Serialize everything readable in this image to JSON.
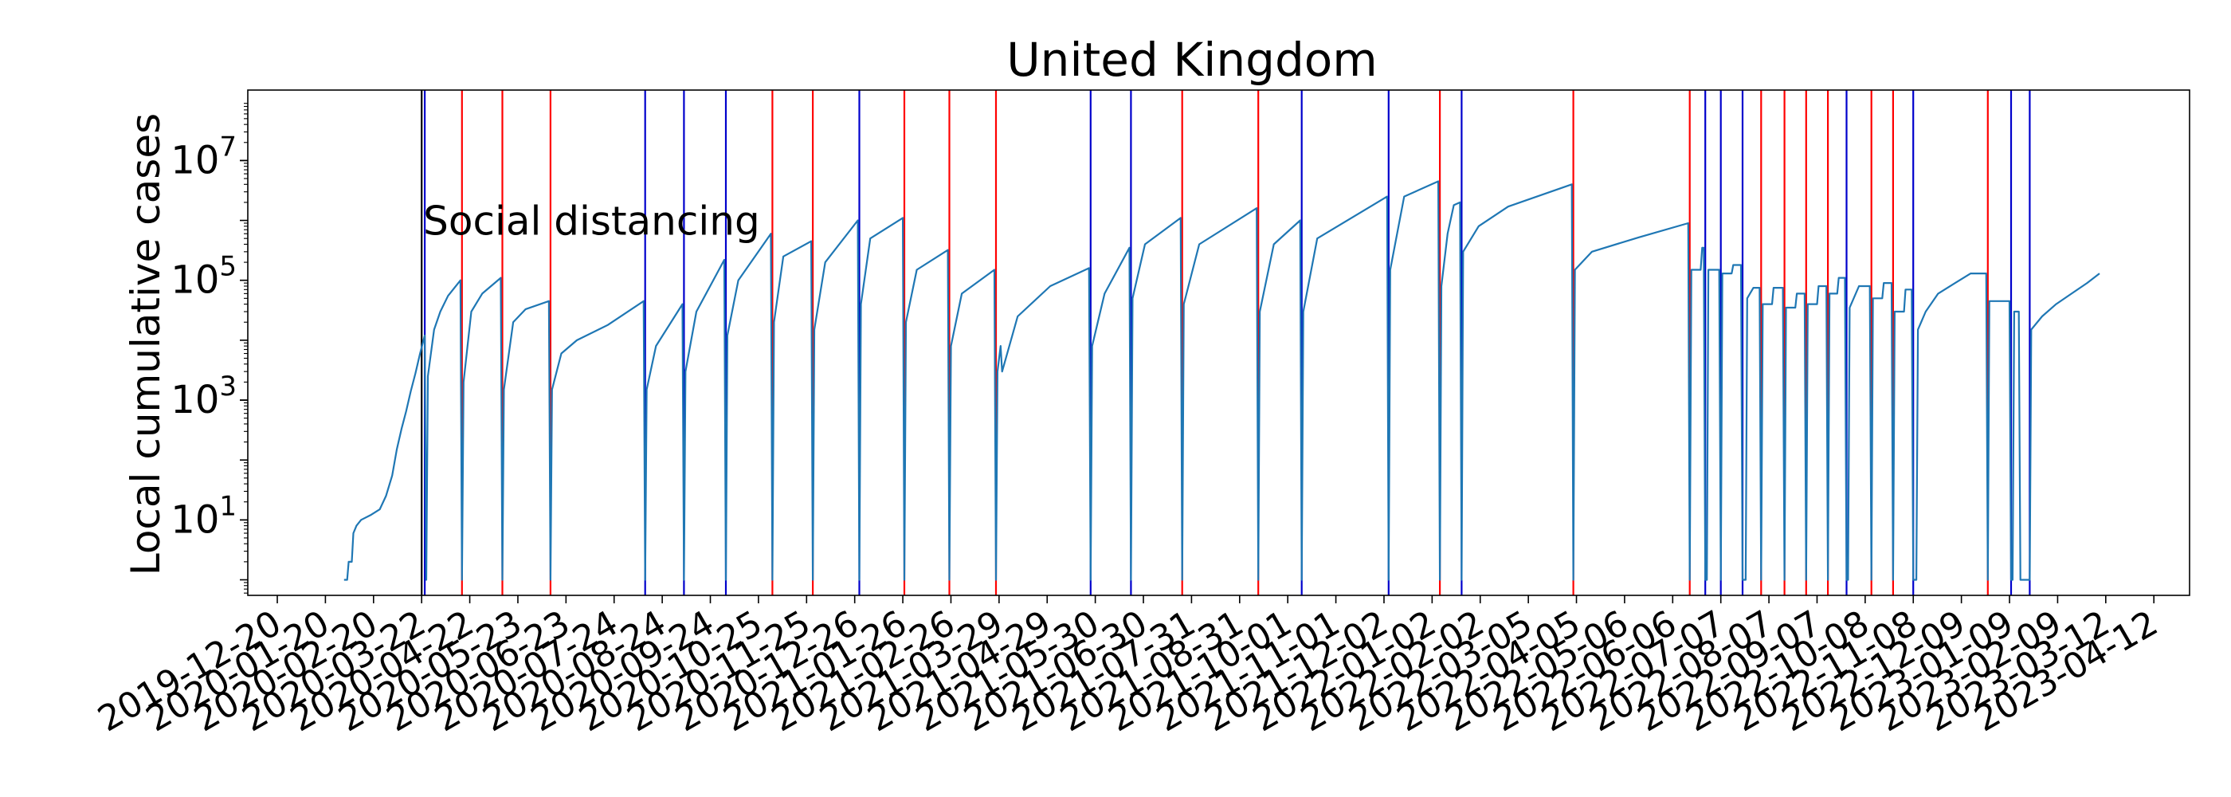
{
  "chart_data": {
    "type": "line",
    "title": "United Kingdom",
    "ylabel": "Local cumulative cases",
    "xlabel": "",
    "y_scale": "log",
    "ylim": [
      0.55,
      150000000.0
    ],
    "xlim": [
      "2019-12-01",
      "2023-05-05"
    ],
    "grid": false,
    "legend": "none",
    "y_ticks": [
      {
        "value": 10,
        "base": "10",
        "exp": "1"
      },
      {
        "value": 1000,
        "base": "10",
        "exp": "3"
      },
      {
        "value": 100000,
        "base": "10",
        "exp": "5"
      },
      {
        "value": 10000000,
        "base": "10",
        "exp": "7"
      }
    ],
    "x_tick_labels": [
      "2019-12-20",
      "2020-01-20",
      "2020-02-20",
      "2020-03-22",
      "2020-04-22",
      "2020-05-23",
      "2020-06-23",
      "2020-07-24",
      "2020-08-24",
      "2020-09-24",
      "2020-10-25",
      "2020-11-25",
      "2020-12-26",
      "2021-01-26",
      "2021-02-26",
      "2021-03-29",
      "2021-04-29",
      "2021-05-30",
      "2021-06-30",
      "2021-07-31",
      "2021-08-31",
      "2021-10-01",
      "2021-11-01",
      "2021-12-02",
      "2022-01-02",
      "2022-02-02",
      "2022-03-05",
      "2022-04-05",
      "2022-05-06",
      "2022-06-06",
      "2022-07-07",
      "2022-08-07",
      "2022-09-07",
      "2022-10-08",
      "2022-11-08",
      "2022-12-09",
      "2023-01-09",
      "2023-02-09",
      "2023-03-12",
      "2023-04-12"
    ],
    "annotations": [
      {
        "text": "Social distancing",
        "x": "2020-03-23",
        "y": 1000000
      }
    ],
    "event_line_color_red": "#ff0000",
    "event_line_color_blue": "#0000cc",
    "event_line_color_black": "#000000",
    "series_color": "#1f77b4",
    "event_lines": [
      {
        "date": "2020-03-22",
        "color": "black"
      },
      {
        "date": "2020-03-24",
        "color": "blue"
      },
      {
        "date": "2020-04-17",
        "color": "red"
      },
      {
        "date": "2020-05-13",
        "color": "red"
      },
      {
        "date": "2020-06-13",
        "color": "red"
      },
      {
        "date": "2020-08-13",
        "color": "blue"
      },
      {
        "date": "2020-09-07",
        "color": "blue"
      },
      {
        "date": "2020-10-04",
        "color": "blue"
      },
      {
        "date": "2020-11-03",
        "color": "red"
      },
      {
        "date": "2020-11-29",
        "color": "red"
      },
      {
        "date": "2020-12-29",
        "color": "blue"
      },
      {
        "date": "2021-01-27",
        "color": "red"
      },
      {
        "date": "2021-02-25",
        "color": "red"
      },
      {
        "date": "2021-03-27",
        "color": "red"
      },
      {
        "date": "2021-05-27",
        "color": "blue"
      },
      {
        "date": "2021-06-22",
        "color": "blue"
      },
      {
        "date": "2021-07-25",
        "color": "red"
      },
      {
        "date": "2021-09-12",
        "color": "red"
      },
      {
        "date": "2021-10-10",
        "color": "blue"
      },
      {
        "date": "2021-12-05",
        "color": "blue"
      },
      {
        "date": "2022-01-07",
        "color": "red"
      },
      {
        "date": "2022-01-21",
        "color": "blue"
      },
      {
        "date": "2022-04-03",
        "color": "red"
      },
      {
        "date": "2022-06-17",
        "color": "red"
      },
      {
        "date": "2022-06-27",
        "color": "blue"
      },
      {
        "date": "2022-07-07",
        "color": "blue"
      },
      {
        "date": "2022-07-21",
        "color": "blue"
      },
      {
        "date": "2022-08-02",
        "color": "red"
      },
      {
        "date": "2022-08-17",
        "color": "red"
      },
      {
        "date": "2022-08-31",
        "color": "red"
      },
      {
        "date": "2022-09-14",
        "color": "red"
      },
      {
        "date": "2022-09-26",
        "color": "blue"
      },
      {
        "date": "2022-10-12",
        "color": "red"
      },
      {
        "date": "2022-10-26",
        "color": "red"
      },
      {
        "date": "2022-11-08",
        "color": "blue"
      },
      {
        "date": "2022-12-26",
        "color": "red"
      },
      {
        "date": "2023-01-10",
        "color": "blue"
      },
      {
        "date": "2023-01-22",
        "color": "blue"
      }
    ],
    "series": [
      {
        "points": [
          [
            "2020-02-01",
            1
          ],
          [
            "2020-02-03",
            1
          ],
          [
            "2020-02-04",
            2
          ],
          [
            "2020-02-06",
            2
          ],
          [
            "2020-02-07",
            6
          ],
          [
            "2020-02-09",
            8
          ],
          [
            "2020-02-12",
            10
          ],
          [
            "2020-02-18",
            12
          ],
          [
            "2020-02-24",
            15
          ],
          [
            "2020-02-28",
            25
          ],
          [
            "2020-03-03",
            55
          ],
          [
            "2020-03-06",
            150
          ],
          [
            "2020-03-09",
            330
          ],
          [
            "2020-03-12",
            650
          ],
          [
            "2020-03-15",
            1400
          ],
          [
            "2020-03-18",
            2800
          ],
          [
            "2020-03-21",
            6000
          ],
          [
            "2020-03-24",
            12000
          ],
          [
            "2020-03-25",
            1
          ],
          [
            "2020-03-26",
            2500
          ],
          [
            "2020-03-30",
            15000
          ],
          [
            "2020-04-03",
            30000
          ],
          [
            "2020-04-08",
            55000
          ],
          [
            "2020-04-16",
            100000
          ],
          [
            "2020-04-17",
            1
          ],
          [
            "2020-04-18",
            2000
          ],
          [
            "2020-04-23",
            30000
          ],
          [
            "2020-04-30",
            60000
          ],
          [
            "2020-05-12",
            110000
          ],
          [
            "2020-05-13",
            1
          ],
          [
            "2020-05-14",
            1500
          ],
          [
            "2020-05-20",
            20000
          ],
          [
            "2020-05-28",
            33000
          ],
          [
            "2020-06-12",
            45000
          ],
          [
            "2020-06-13",
            1
          ],
          [
            "2020-06-14",
            1500
          ],
          [
            "2020-06-20",
            6000
          ],
          [
            "2020-06-30",
            10000
          ],
          [
            "2020-07-20",
            18000
          ],
          [
            "2020-08-12",
            45000
          ],
          [
            "2020-08-13",
            1
          ],
          [
            "2020-08-14",
            1500
          ],
          [
            "2020-08-20",
            8000
          ],
          [
            "2020-09-06",
            40000
          ],
          [
            "2020-09-07",
            1
          ],
          [
            "2020-09-08",
            3000
          ],
          [
            "2020-09-15",
            30000
          ],
          [
            "2020-10-03",
            220000
          ],
          [
            "2020-10-04",
            1
          ],
          [
            "2020-10-05",
            12000
          ],
          [
            "2020-10-12",
            100000
          ],
          [
            "2020-11-02",
            600000
          ],
          [
            "2020-11-03",
            1
          ],
          [
            "2020-11-04",
            20000
          ],
          [
            "2020-11-10",
            250000
          ],
          [
            "2020-11-28",
            450000
          ],
          [
            "2020-11-29",
            1
          ],
          [
            "2020-11-30",
            15000
          ],
          [
            "2020-12-07",
            200000
          ],
          [
            "2020-12-28",
            1000000
          ],
          [
            "2020-12-29",
            1
          ],
          [
            "2020-12-30",
            40000
          ],
          [
            "2021-01-05",
            500000
          ],
          [
            "2021-01-26",
            1100000
          ],
          [
            "2021-01-27",
            1
          ],
          [
            "2021-01-28",
            20000
          ],
          [
            "2021-02-04",
            150000
          ],
          [
            "2021-02-24",
            320000
          ],
          [
            "2021-02-25",
            1
          ],
          [
            "2021-02-26",
            8000
          ],
          [
            "2021-03-05",
            60000
          ],
          [
            "2021-03-26",
            150000
          ],
          [
            "2021-03-27",
            1
          ],
          [
            "2021-03-28",
            3000
          ],
          [
            "2021-03-30",
            8000
          ],
          [
            "2021-03-31",
            3000
          ],
          [
            "2021-04-10",
            25000
          ],
          [
            "2021-05-01",
            80000
          ],
          [
            "2021-05-26",
            160000
          ],
          [
            "2021-05-27",
            1
          ],
          [
            "2021-05-28",
            8000
          ],
          [
            "2021-06-05",
            60000
          ],
          [
            "2021-06-21",
            350000
          ],
          [
            "2021-06-22",
            1
          ],
          [
            "2021-06-23",
            50000
          ],
          [
            "2021-07-01",
            400000
          ],
          [
            "2021-07-24",
            1100000
          ],
          [
            "2021-07-25",
            1
          ],
          [
            "2021-07-26",
            40000
          ],
          [
            "2021-08-05",
            400000
          ],
          [
            "2021-09-11",
            1600000
          ],
          [
            "2021-09-12",
            1
          ],
          [
            "2021-09-13",
            30000
          ],
          [
            "2021-09-22",
            400000
          ],
          [
            "2021-10-09",
            1000000
          ],
          [
            "2021-10-10",
            1
          ],
          [
            "2021-10-11",
            30000
          ],
          [
            "2021-10-20",
            500000
          ],
          [
            "2021-12-04",
            2500000
          ],
          [
            "2021-12-05",
            1
          ],
          [
            "2021-12-06",
            150000
          ],
          [
            "2021-12-15",
            2500000
          ],
          [
            "2022-01-06",
            4500000
          ],
          [
            "2022-01-07",
            1
          ],
          [
            "2022-01-08",
            80000
          ],
          [
            "2022-01-12",
            600000
          ],
          [
            "2022-01-16",
            1800000
          ],
          [
            "2022-01-20",
            2000000
          ],
          [
            "2022-01-21",
            1
          ],
          [
            "2022-01-22",
            300000
          ],
          [
            "2022-02-01",
            800000
          ],
          [
            "2022-02-20",
            1700000
          ],
          [
            "2022-04-02",
            4000000
          ],
          [
            "2022-04-03",
            1
          ],
          [
            "2022-04-04",
            150000
          ],
          [
            "2022-04-15",
            300000
          ],
          [
            "2022-05-15",
            520000
          ],
          [
            "2022-06-16",
            900000
          ],
          [
            "2022-06-17",
            1
          ],
          [
            "2022-06-18",
            150000
          ],
          [
            "2022-06-24",
            150000
          ],
          [
            "2022-06-25",
            350000
          ],
          [
            "2022-06-26",
            350000
          ],
          [
            "2022-06-27",
            1
          ],
          [
            "2022-06-28",
            1
          ],
          [
            "2022-06-29",
            150000
          ],
          [
            "2022-07-06",
            150000
          ],
          [
            "2022-07-07",
            1
          ],
          [
            "2022-07-08",
            130000
          ],
          [
            "2022-07-14",
            130000
          ],
          [
            "2022-07-15",
            180000
          ],
          [
            "2022-07-20",
            180000
          ],
          [
            "2022-07-21",
            1
          ],
          [
            "2022-07-23",
            1
          ],
          [
            "2022-07-24",
            50000
          ],
          [
            "2022-07-28",
            75000
          ],
          [
            "2022-08-01",
            75000
          ],
          [
            "2022-08-02",
            1
          ],
          [
            "2022-08-03",
            40000
          ],
          [
            "2022-08-09",
            40000
          ],
          [
            "2022-08-10",
            75000
          ],
          [
            "2022-08-16",
            75000
          ],
          [
            "2022-08-17",
            1
          ],
          [
            "2022-08-18",
            35000
          ],
          [
            "2022-08-24",
            35000
          ],
          [
            "2022-08-25",
            60000
          ],
          [
            "2022-08-30",
            60000
          ],
          [
            "2022-08-31",
            1
          ],
          [
            "2022-09-01",
            40000
          ],
          [
            "2022-09-07",
            40000
          ],
          [
            "2022-09-08",
            80000
          ],
          [
            "2022-09-13",
            80000
          ],
          [
            "2022-09-14",
            1
          ],
          [
            "2022-09-15",
            60000
          ],
          [
            "2022-09-20",
            60000
          ],
          [
            "2022-09-21",
            110000
          ],
          [
            "2022-09-25",
            110000
          ],
          [
            "2022-09-26",
            1
          ],
          [
            "2022-09-27",
            1
          ],
          [
            "2022-09-28",
            35000
          ],
          [
            "2022-10-04",
            80000
          ],
          [
            "2022-10-11",
            80000
          ],
          [
            "2022-10-12",
            1
          ],
          [
            "2022-10-13",
            50000
          ],
          [
            "2022-10-19",
            50000
          ],
          [
            "2022-10-20",
            90000
          ],
          [
            "2022-10-25",
            90000
          ],
          [
            "2022-10-26",
            1
          ],
          [
            "2022-10-27",
            30000
          ],
          [
            "2022-11-02",
            30000
          ],
          [
            "2022-11-03",
            70000
          ],
          [
            "2022-11-07",
            70000
          ],
          [
            "2022-11-08",
            1
          ],
          [
            "2022-11-10",
            1
          ],
          [
            "2022-11-11",
            15000
          ],
          [
            "2022-11-16",
            30000
          ],
          [
            "2022-11-24",
            60000
          ],
          [
            "2022-12-05",
            90000
          ],
          [
            "2022-12-15",
            130000
          ],
          [
            "2022-12-25",
            130000
          ],
          [
            "2022-12-26",
            1
          ],
          [
            "2022-12-27",
            45000
          ],
          [
            "2023-01-09",
            45000
          ],
          [
            "2023-01-10",
            1
          ],
          [
            "2023-01-11",
            1
          ],
          [
            "2023-01-12",
            30000
          ],
          [
            "2023-01-15",
            30000
          ],
          [
            "2023-01-16",
            1
          ],
          [
            "2023-01-21",
            1
          ],
          [
            "2023-01-22",
            1
          ],
          [
            "2023-01-23",
            15000
          ],
          [
            "2023-01-30",
            25000
          ],
          [
            "2023-02-08",
            40000
          ],
          [
            "2023-02-18",
            60000
          ],
          [
            "2023-02-28",
            90000
          ],
          [
            "2023-03-08",
            130000
          ]
        ]
      }
    ]
  }
}
